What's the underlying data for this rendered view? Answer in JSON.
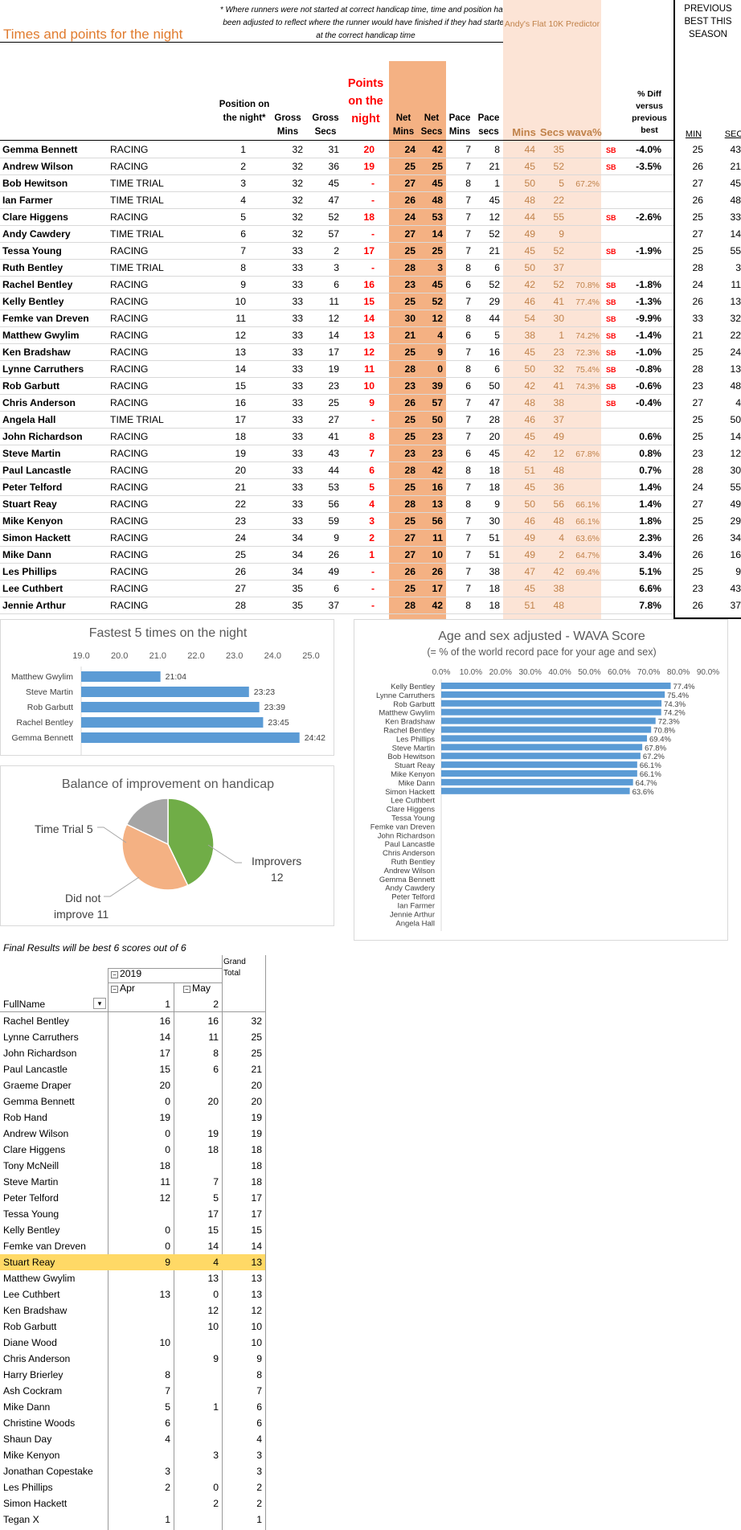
{
  "title": "Times and points for the night",
  "note": "* Where runners were not started at correct handicap time, time and position have been adjusted to reflect where the runner would have finished if they had started at the correct handicap time",
  "predictor": "Andy's Flat 10K Predictor",
  "prev_title": "PREVIOUS BEST THIS SEASON",
  "headers": {
    "position": "Position on the night*",
    "gross_mins": "Gross Mins",
    "gross_secs": "Gross Secs",
    "points": "Points on the night",
    "net_mins": "Net Mins",
    "net_secs": "Net Secs",
    "pace_mins": "Pace Mins",
    "pace_secs": "Pace secs",
    "pred_mins": "Mins",
    "pred_secs": "Secs",
    "wava": "wava%",
    "diff": "% Diff versus previous best",
    "prev_min": "MIN",
    "prev_sec": "SEC"
  },
  "rows": [
    [
      "Gemma Bennett",
      "RACING",
      "1",
      "32",
      "31",
      "20",
      "24",
      "42",
      "7",
      "8",
      "44",
      "35",
      "",
      "SB",
      "-4.0%",
      "25",
      "43"
    ],
    [
      "Andrew Wilson",
      "RACING",
      "2",
      "32",
      "36",
      "19",
      "25",
      "25",
      "7",
      "21",
      "45",
      "52",
      "",
      "SB",
      "-3.5%",
      "26",
      "21"
    ],
    [
      "Bob Hewitson",
      "TIME TRIAL",
      "3",
      "32",
      "45",
      "-",
      "27",
      "45",
      "8",
      "1",
      "50",
      "5",
      "67.2%",
      "",
      "",
      "27",
      "45"
    ],
    [
      "Ian Farmer",
      "TIME TRIAL",
      "4",
      "32",
      "47",
      "-",
      "26",
      "48",
      "7",
      "45",
      "48",
      "22",
      "",
      "",
      "",
      "26",
      "48"
    ],
    [
      "Clare Higgens",
      "RACING",
      "5",
      "32",
      "52",
      "18",
      "24",
      "53",
      "7",
      "12",
      "44",
      "55",
      "",
      "SB",
      "-2.6%",
      "25",
      "33"
    ],
    [
      "Andy Cawdery",
      "TIME TRIAL",
      "6",
      "32",
      "57",
      "-",
      "27",
      "14",
      "7",
      "52",
      "49",
      "9",
      "",
      "",
      "",
      "27",
      "14"
    ],
    [
      "Tessa Young",
      "RACING",
      "7",
      "33",
      "2",
      "17",
      "25",
      "25",
      "7",
      "21",
      "45",
      "52",
      "",
      "SB",
      "-1.9%",
      "25",
      "55"
    ],
    [
      "Ruth Bentley",
      "TIME TRIAL",
      "8",
      "33",
      "3",
      "-",
      "28",
      "3",
      "8",
      "6",
      "50",
      "37",
      "",
      "",
      "",
      "28",
      "3"
    ],
    [
      "Rachel Bentley",
      "RACING",
      "9",
      "33",
      "6",
      "16",
      "23",
      "45",
      "6",
      "52",
      "42",
      "52",
      "70.8%",
      "SB",
      "-1.8%",
      "24",
      "11"
    ],
    [
      "Kelly Bentley",
      "RACING",
      "10",
      "33",
      "11",
      "15",
      "25",
      "52",
      "7",
      "29",
      "46",
      "41",
      "77.4%",
      "SB",
      "-1.3%",
      "26",
      "13"
    ],
    [
      "Femke van Dreven",
      "RACING",
      "11",
      "33",
      "12",
      "14",
      "30",
      "12",
      "8",
      "44",
      "54",
      "30",
      "",
      "SB",
      "-9.9%",
      "33",
      "32"
    ],
    [
      "Matthew Gwylim",
      "RACING",
      "12",
      "33",
      "14",
      "13",
      "21",
      "4",
      "6",
      "5",
      "38",
      "1",
      "74.2%",
      "SB",
      "-1.4%",
      "21",
      "22"
    ],
    [
      "Ken Bradshaw",
      "RACING",
      "13",
      "33",
      "17",
      "12",
      "25",
      "9",
      "7",
      "16",
      "45",
      "23",
      "72.3%",
      "SB",
      "-1.0%",
      "25",
      "24"
    ],
    [
      "Lynne Carruthers",
      "RACING",
      "14",
      "33",
      "19",
      "11",
      "28",
      "0",
      "8",
      "6",
      "50",
      "32",
      "75.4%",
      "SB",
      "-0.8%",
      "28",
      "13"
    ],
    [
      "Rob Garbutt",
      "RACING",
      "15",
      "33",
      "23",
      "10",
      "23",
      "39",
      "6",
      "50",
      "42",
      "41",
      "74.3%",
      "SB",
      "-0.6%",
      "23",
      "48"
    ],
    [
      "Chris Anderson",
      "RACING",
      "16",
      "33",
      "25",
      "9",
      "26",
      "57",
      "7",
      "47",
      "48",
      "38",
      "",
      "SB",
      "-0.4%",
      "27",
      "4"
    ],
    [
      "Angela Hall",
      "TIME TRIAL",
      "17",
      "33",
      "27",
      "-",
      "25",
      "50",
      "7",
      "28",
      "46",
      "37",
      "",
      "",
      "",
      "25",
      "50"
    ],
    [
      "John Richardson",
      "RACING",
      "18",
      "33",
      "41",
      "8",
      "25",
      "23",
      "7",
      "20",
      "45",
      "49",
      "",
      "",
      "0.6%",
      "25",
      "14"
    ],
    [
      "Steve Martin",
      "RACING",
      "19",
      "33",
      "43",
      "7",
      "23",
      "23",
      "6",
      "45",
      "42",
      "12",
      "67.8%",
      "",
      "0.8%",
      "23",
      "12"
    ],
    [
      "Paul Lancastle",
      "RACING",
      "20",
      "33",
      "44",
      "6",
      "28",
      "42",
      "8",
      "18",
      "51",
      "48",
      "",
      "",
      "0.7%",
      "28",
      "30"
    ],
    [
      "Peter Telford",
      "RACING",
      "21",
      "33",
      "53",
      "5",
      "25",
      "16",
      "7",
      "18",
      "45",
      "36",
      "",
      "",
      "1.4%",
      "24",
      "55"
    ],
    [
      "Stuart Reay",
      "RACING",
      "22",
      "33",
      "56",
      "4",
      "28",
      "13",
      "8",
      "9",
      "50",
      "56",
      "66.1%",
      "",
      "1.4%",
      "27",
      "49"
    ],
    [
      "Mike Kenyon",
      "RACING",
      "23",
      "33",
      "59",
      "3",
      "25",
      "56",
      "7",
      "30",
      "46",
      "48",
      "66.1%",
      "",
      "1.8%",
      "25",
      "29"
    ],
    [
      "Simon Hackett",
      "RACING",
      "24",
      "34",
      "9",
      "2",
      "27",
      "11",
      "7",
      "51",
      "49",
      "4",
      "63.6%",
      "",
      "2.3%",
      "26",
      "34"
    ],
    [
      "Mike Dann",
      "RACING",
      "25",
      "34",
      "26",
      "1",
      "27",
      "10",
      "7",
      "51",
      "49",
      "2",
      "64.7%",
      "",
      "3.4%",
      "26",
      "16"
    ],
    [
      "Les Phillips",
      "RACING",
      "26",
      "34",
      "49",
      "-",
      "26",
      "26",
      "7",
      "38",
      "47",
      "42",
      "69.4%",
      "",
      "5.1%",
      "25",
      "9"
    ],
    [
      "Lee Cuthbert",
      "RACING",
      "27",
      "35",
      "6",
      "-",
      "25",
      "17",
      "7",
      "18",
      "45",
      "38",
      "",
      "",
      "6.6%",
      "23",
      "43"
    ],
    [
      "Jennie Arthur",
      "RACING",
      "28",
      "35",
      "37",
      "-",
      "28",
      "42",
      "8",
      "18",
      "51",
      "48",
      "",
      "",
      "7.8%",
      "26",
      "37"
    ]
  ],
  "fastest_chart": {
    "title": "Fastest 5 times on the night",
    "ticks": [
      "19.0",
      "20.0",
      "21.0",
      "22.0",
      "23.0",
      "24.0",
      "25.0"
    ],
    "bars": [
      [
        "Matthew Gwylim",
        "21:04",
        21.07
      ],
      [
        "Steve Martin",
        "23:23",
        23.38
      ],
      [
        "Rob Garbutt",
        "23:39",
        23.65
      ],
      [
        "Rachel Bentley",
        "23:45",
        23.75
      ],
      [
        "Gemma Bennett",
        "24:42",
        24.7
      ]
    ],
    "xmin": 19,
    "xmax": 25
  },
  "pie_chart": {
    "title": "Balance of improvement on handicap",
    "slices": [
      {
        "label": "Improvers",
        "value": 12,
        "color": "#70AD47"
      },
      {
        "label": "Did not improve",
        "value": 11,
        "color": "#F4B183"
      },
      {
        "label": "Time Trial",
        "value": 5,
        "color": "#A5A5A5"
      }
    ],
    "labels": {
      "tt": "Time Trial 5",
      "imp": "Improvers",
      "imp_v": "12",
      "dni": "Did not",
      "dni2": "improve 11"
    }
  },
  "wava_chart": {
    "title": "Age and sex adjusted - WAVA Score",
    "subtitle": "(= % of the world record pace for your age and sex)",
    "ticks": [
      "0.0%",
      "10.0%",
      "20.0%",
      "30.0%",
      "40.0%",
      "50.0%",
      "60.0%",
      "70.0%",
      "80.0%",
      "90.0%"
    ],
    "bars": [
      [
        "Kelly Bentley",
        77.4,
        "77.4%"
      ],
      [
        "Lynne Carruthers",
        75.4,
        "75.4%"
      ],
      [
        "Rob Garbutt",
        74.3,
        "74.3%"
      ],
      [
        "Matthew Gwylim",
        74.2,
        "74.2%"
      ],
      [
        "Ken Bradshaw",
        72.3,
        "72.3%"
      ],
      [
        "Rachel Bentley",
        70.8,
        "70.8%"
      ],
      [
        "Les Phillips",
        69.4,
        "69.4%"
      ],
      [
        "Steve Martin",
        67.8,
        "67.8%"
      ],
      [
        "Bob Hewitson",
        67.2,
        "67.2%"
      ],
      [
        "Stuart Reay",
        66.1,
        "66.1%"
      ],
      [
        "Mike Kenyon",
        66.1,
        "66.1%"
      ],
      [
        "Mike Dann",
        64.7,
        "64.7%"
      ],
      [
        "Simon Hackett",
        63.6,
        "63.6%"
      ],
      [
        "Lee Cuthbert",
        0,
        ""
      ],
      [
        "Clare Higgens",
        0,
        ""
      ],
      [
        "Tessa Young",
        0,
        ""
      ],
      [
        "Femke van Dreven",
        0,
        ""
      ],
      [
        "John Richardson",
        0,
        ""
      ],
      [
        "Paul Lancastle",
        0,
        ""
      ],
      [
        "Chris Anderson",
        0,
        ""
      ],
      [
        "Ruth Bentley",
        0,
        ""
      ],
      [
        "Andrew Wilson",
        0,
        ""
      ],
      [
        "Gemma Bennett",
        0,
        ""
      ],
      [
        "Andy Cawdery",
        0,
        ""
      ],
      [
        "Peter Telford",
        0,
        ""
      ],
      [
        "Ian Farmer",
        0,
        ""
      ],
      [
        "Jennie Arthur",
        0,
        ""
      ],
      [
        "Angela Hall",
        0,
        ""
      ]
    ],
    "xmax": 90
  },
  "pivot": {
    "caption": "Final Results will be best 6 scores out of 6",
    "grand_total": "Grand Total",
    "year": "2019",
    "apr": "Apr",
    "may": "May",
    "fullname": "FullName",
    "c1": "1",
    "c2": "2",
    "rows": [
      [
        "Rachel Bentley",
        "16",
        "16",
        "32"
      ],
      [
        "Lynne Carruthers",
        "14",
        "11",
        "25"
      ],
      [
        "John Richardson",
        "17",
        "8",
        "25"
      ],
      [
        "Paul Lancastle",
        "15",
        "6",
        "21"
      ],
      [
        "Graeme Draper",
        "20",
        "",
        "20"
      ],
      [
        "Gemma Bennett",
        "0",
        "20",
        "20"
      ],
      [
        "Rob Hand",
        "19",
        "",
        "19"
      ],
      [
        "Andrew Wilson",
        "0",
        "19",
        "19"
      ],
      [
        "Clare Higgens",
        "0",
        "18",
        "18"
      ],
      [
        "Tony McNeill",
        "18",
        "",
        "18"
      ],
      [
        "Steve Martin",
        "11",
        "7",
        "18"
      ],
      [
        "Peter Telford",
        "12",
        "5",
        "17"
      ],
      [
        "Tessa Young",
        "",
        "17",
        "17"
      ],
      [
        "Kelly Bentley",
        "0",
        "15",
        "15"
      ],
      [
        "Femke van Dreven",
        "0",
        "14",
        "14"
      ],
      [
        "Stuart Reay",
        "9",
        "4",
        "13"
      ],
      [
        "Matthew Gwylim",
        "",
        "13",
        "13"
      ],
      [
        "Lee Cuthbert",
        "13",
        "0",
        "13"
      ],
      [
        "Ken Bradshaw",
        "",
        "12",
        "12"
      ],
      [
        "Rob Garbutt",
        "",
        "10",
        "10"
      ],
      [
        "Diane Wood",
        "10",
        "",
        "10"
      ],
      [
        "Chris Anderson",
        "",
        "9",
        "9"
      ],
      [
        "Harry Brierley",
        "8",
        "",
        "8"
      ],
      [
        "Ash Cockram",
        "7",
        "",
        "7"
      ],
      [
        "Mike Dann",
        "5",
        "1",
        "6"
      ],
      [
        "Christine Woods",
        "6",
        "",
        "6"
      ],
      [
        "Shaun Day",
        "4",
        "",
        "4"
      ],
      [
        "Mike Kenyon",
        "",
        "3",
        "3"
      ],
      [
        "Jonathan Copestake",
        "3",
        "",
        "3"
      ],
      [
        "Les Phillips",
        "2",
        "0",
        "2"
      ],
      [
        "Simon Hackett",
        "",
        "2",
        "2"
      ],
      [
        "Tegan X",
        "1",
        "",
        "1"
      ]
    ]
  }
}
